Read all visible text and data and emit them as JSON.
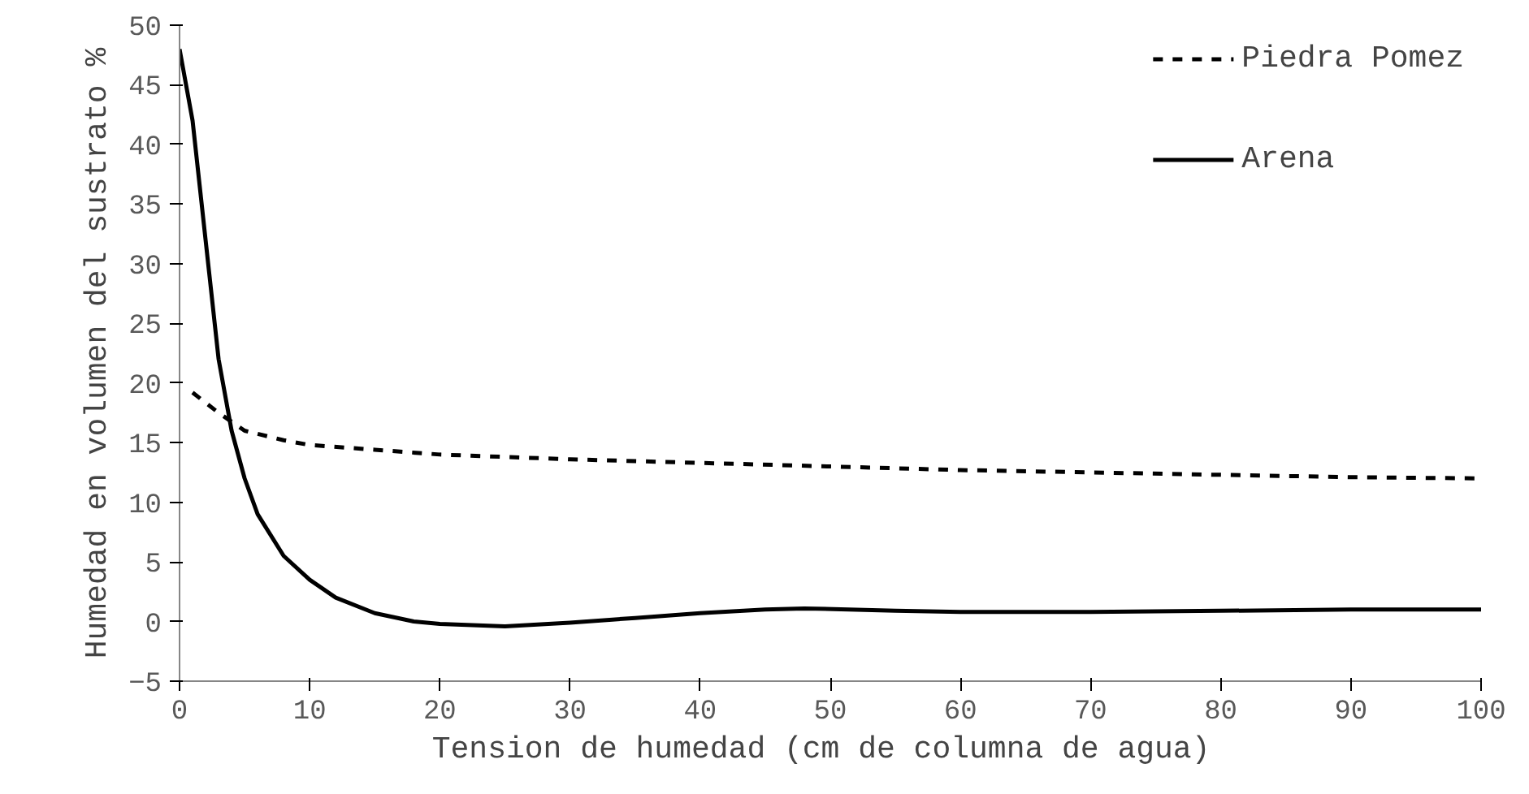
{
  "chart_data": {
    "type": "line",
    "xlabel": "Tension de humedad  (cm de columna de agua)",
    "ylabel": "Humedad en volumen del sustrato %",
    "xlim": [
      0,
      100
    ],
    "xticks": [
      0,
      10,
      20,
      30,
      40,
      50,
      60,
      70,
      80,
      90,
      100
    ],
    "ylim": [
      -5,
      50
    ],
    "yticks": [
      -5,
      0,
      5,
      10,
      15,
      20,
      25,
      30,
      35,
      40,
      45,
      50
    ],
    "grid": false,
    "legend": "top right",
    "series": [
      {
        "name": "Piedra Pomez",
        "color": "#000000",
        "line_style": "dashed",
        "x": [
          1,
          3,
          5,
          8,
          10,
          15,
          20,
          30,
          40,
          50,
          60,
          70,
          80,
          90,
          100
        ],
        "values": [
          19.2,
          17.5,
          16,
          15.2,
          14.8,
          14.4,
          14,
          13.6,
          13.3,
          13,
          12.7,
          12.5,
          12.3,
          12.1,
          12
        ]
      },
      {
        "name": "Arena",
        "color": "#000000",
        "line_style": "solid",
        "x": [
          0,
          1,
          2,
          3,
          4,
          5,
          6,
          8,
          10,
          12,
          15,
          18,
          20,
          25,
          30,
          35,
          40,
          45,
          48,
          55,
          60,
          70,
          80,
          90,
          100
        ],
        "values": [
          48,
          42,
          32,
          22,
          16,
          12,
          9,
          5.5,
          3.5,
          2,
          0.7,
          0,
          -0.2,
          -0.4,
          -0.1,
          0.3,
          0.7,
          1,
          1.1,
          0.9,
          0.8,
          0.8,
          0.9,
          1,
          1
        ]
      }
    ]
  }
}
